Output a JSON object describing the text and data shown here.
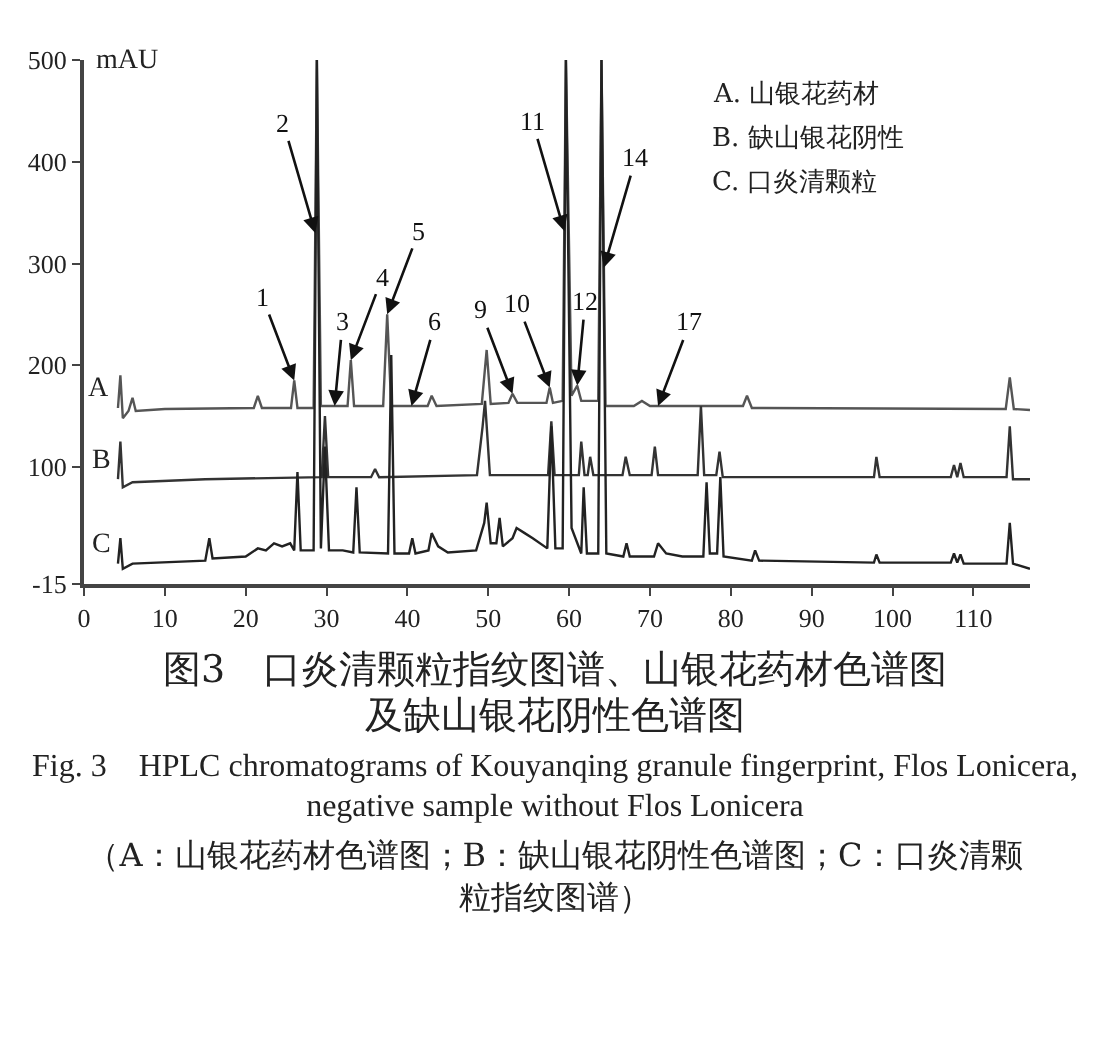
{
  "chart_data": {
    "type": "line",
    "title": "图3　口炎清颗粒指纹图谱、山银花药材色谱图及缺山银花阴性色谱图",
    "subtitle": "Fig. 3　HPLC chromatograms of Kouyanqing granule fingerprint, Flos Lonicera, negative sample without Flos Lonicera",
    "ylabel": "mAU",
    "xlim": [
      0,
      117
    ],
    "xticks": [
      0,
      10,
      20,
      30,
      40,
      50,
      60,
      70,
      80,
      90,
      100,
      110
    ],
    "ylim": [
      -15,
      500
    ],
    "yticks": [
      -15,
      100,
      200,
      300,
      400,
      500
    ],
    "grid": false,
    "legend": false,
    "marker": "none",
    "line_style": "solid",
    "series": [
      {
        "name": "A",
        "color": "#555555",
        "x": [
          4.2,
          4.5,
          4.8,
          5.5,
          6,
          6.4,
          10,
          21,
          21.5,
          22,
          25.6,
          26,
          26.4,
          28.4,
          28.8,
          29.3,
          32.6,
          33,
          33.4,
          37,
          37.5,
          38,
          42.5,
          43,
          43.6,
          49.2,
          49.8,
          50.3,
          52.5,
          53,
          53.6,
          57.2,
          57.6,
          58,
          59.2,
          59.6,
          60.3,
          61,
          61.5,
          63.6,
          64,
          64.5,
          68,
          69,
          70,
          81.5,
          82,
          82.6,
          114,
          114.5,
          115,
          117
        ],
        "values": [
          158,
          190,
          148,
          155,
          168,
          155,
          157,
          158,
          170,
          158,
          158,
          185,
          158,
          158,
          500,
          160,
          160,
          205,
          160,
          160,
          250,
          160,
          160,
          170,
          160,
          162,
          215,
          162,
          163,
          172,
          163,
          163,
          178,
          163,
          165,
          500,
          170,
          180,
          165,
          165,
          500,
          160,
          160,
          165,
          160,
          160,
          170,
          158,
          157,
          188,
          157,
          156
        ]
      },
      {
        "name": "B",
        "color": "#333333",
        "x": [
          4.2,
          4.5,
          4.8,
          6,
          15,
          29.4,
          29.8,
          30.2,
          35.5,
          36,
          36.5,
          48.6,
          49.3,
          49.6,
          50.2,
          57.4,
          57.8,
          58.2,
          61.2,
          61.5,
          61.9,
          62.3,
          62.6,
          63,
          66.6,
          67,
          67.5,
          70.2,
          70.6,
          71,
          75.9,
          76.3,
          76.7,
          78.2,
          78.6,
          79,
          97.7,
          98,
          98.4,
          107.2,
          107.6,
          108,
          108.4,
          108.8,
          114.1,
          114.5,
          114.9,
          117
        ],
        "values": [
          88,
          125,
          80,
          85,
          88,
          90,
          150,
          90,
          90,
          98,
          90,
          92,
          140,
          165,
          92,
          92,
          145,
          92,
          92,
          125,
          92,
          92,
          110,
          92,
          92,
          110,
          92,
          92,
          120,
          92,
          92,
          160,
          92,
          92,
          115,
          90,
          90,
          110,
          90,
          90,
          102,
          90,
          104,
          90,
          90,
          140,
          88,
          88
        ]
      },
      {
        "name": "C",
        "color": "#222222",
        "x": [
          4.2,
          4.5,
          4.8,
          6,
          15,
          15.5,
          15.9,
          20,
          21.5,
          22.5,
          23.5,
          24.5,
          25.5,
          26,
          26.4,
          26.8,
          28.4,
          28.8,
          29.3,
          29.8,
          30.3,
          32,
          33.3,
          33.7,
          34.1,
          37.6,
          38,
          38.4,
          40.2,
          40.6,
          41,
          42.6,
          43,
          43.8,
          45,
          48.5,
          49.5,
          49.8,
          50.3,
          51,
          51.4,
          51.8,
          53,
          53.5,
          54.5,
          55.5,
          57.3,
          57.8,
          58.3,
          59.2,
          59.6,
          60.3,
          61.5,
          61.8,
          62.2,
          63.6,
          64,
          64.6,
          66.7,
          67.1,
          67.5,
          70.5,
          71,
          72,
          74,
          76.6,
          77,
          77.4,
          78.3,
          78.7,
          79.1,
          82.6,
          83,
          83.5,
          97.7,
          98,
          98.4,
          107.2,
          107.6,
          108,
          108.4,
          108.8,
          114.1,
          114.5,
          114.9,
          117
        ],
        "values": [
          5,
          30,
          0,
          5,
          8,
          30,
          10,
          12,
          20,
          18,
          25,
          22,
          25,
          18,
          95,
          18,
          18,
          500,
          20,
          120,
          18,
          18,
          16,
          80,
          16,
          15,
          210,
          15,
          15,
          30,
          15,
          18,
          35,
          22,
          16,
          18,
          45,
          65,
          25,
          25,
          50,
          22,
          30,
          40,
          35,
          30,
          20,
          140,
          20,
          20,
          500,
          40,
          15,
          80,
          15,
          15,
          500,
          15,
          12,
          25,
          12,
          12,
          25,
          15,
          12,
          12,
          85,
          15,
          15,
          90,
          12,
          8,
          18,
          8,
          6,
          14,
          6,
          6,
          15,
          6,
          14,
          5,
          5,
          45,
          5,
          0
        ]
      }
    ],
    "annotations": [
      {
        "text": "1",
        "x": 26,
        "y": 185
      },
      {
        "text": "2",
        "x": 28.6,
        "y": 330
      },
      {
        "text": "3",
        "x": 31,
        "y": 160
      },
      {
        "text": "4",
        "x": 33,
        "y": 205
      },
      {
        "text": "5",
        "x": 37.5,
        "y": 250
      },
      {
        "text": "6",
        "x": 40.5,
        "y": 160
      },
      {
        "text": "9",
        "x": 53,
        "y": 172
      },
      {
        "text": "10",
        "x": 57.6,
        "y": 178
      },
      {
        "text": "11",
        "x": 59.4,
        "y": 332
      },
      {
        "text": "12",
        "x": 61,
        "y": 180
      },
      {
        "text": "14",
        "x": 64.3,
        "y": 296
      },
      {
        "text": "17",
        "x": 71,
        "y": 160
      },
      "A. 山银花药材",
      "B. 缺山银花阴性",
      "C. 口炎清颗粒",
      "（A：山银花药材色谱图；B：缺山银花阴性色谱图；C：口炎清颗粒指纹图谱）"
    ]
  }
}
